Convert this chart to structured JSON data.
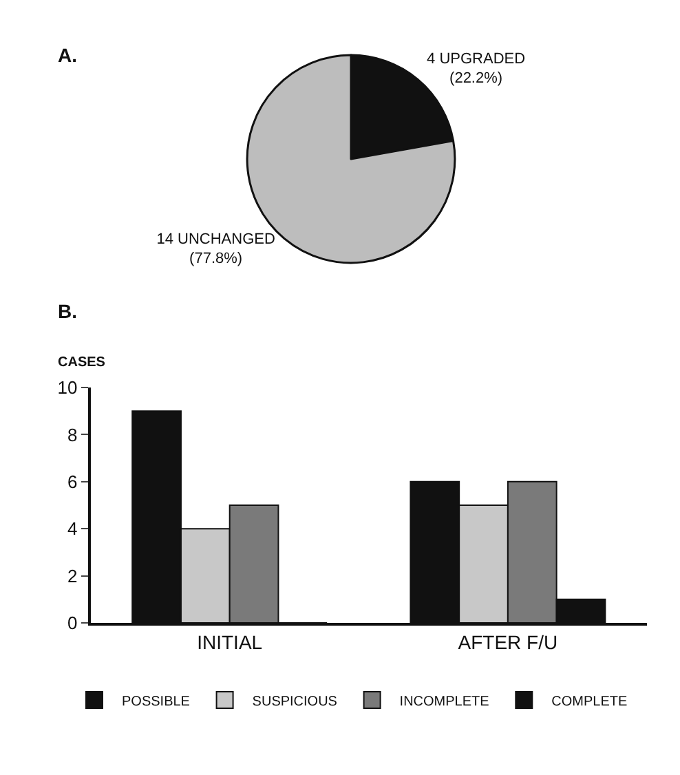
{
  "chart_data": [
    {
      "type": "pie",
      "title": "A.",
      "categories": [
        "4 UPGRADED",
        "14 UNCHANGED"
      ],
      "values": [
        22.2,
        77.8
      ],
      "value_labels": [
        "(22.2%)",
        "(77.8%)"
      ],
      "colors": [
        "#111111",
        "#bdbdbd"
      ],
      "legend": false
    },
    {
      "type": "bar",
      "title": "B.",
      "ylabel": "CASES",
      "categories": [
        "INITIAL",
        "AFTER F/U"
      ],
      "ylim": [
        0,
        10
      ],
      "yticks": [
        0,
        2,
        4,
        6,
        8,
        10
      ],
      "legend": "bottom",
      "series": [
        {
          "name": "POSSIBLE",
          "color": "#111111",
          "values": [
            9,
            6
          ]
        },
        {
          "name": "SUSPICIOUS",
          "color": "#c8c8c8",
          "values": [
            4,
            5
          ]
        },
        {
          "name": "INCOMPLETE",
          "color": "#7a7a7a",
          "values": [
            5,
            6
          ]
        },
        {
          "name": "COMPLETE",
          "color": "#111111",
          "values": [
            0,
            1
          ]
        }
      ]
    }
  ]
}
